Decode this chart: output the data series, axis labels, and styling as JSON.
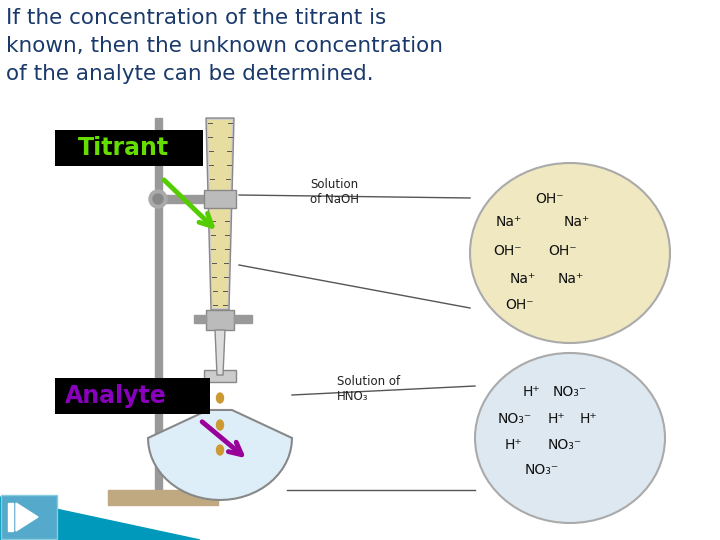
{
  "title_line1": "If the concentration of the titrant is",
  "title_line2": "known, then the unknown concentration",
  "title_line3": "of the analyte can be determined.",
  "title_color": "#1a3a6b",
  "title_fontsize": 15.5,
  "bg_color": "#ffffff",
  "titrant_label": "Titrant",
  "titrant_label_color": "#66dd00",
  "titrant_box_color": "#000000",
  "analyte_label": "Analyte",
  "analyte_label_color": "#8800bb",
  "analyte_box_color": "#000000",
  "naoh_circle_color": "#f0e8c0",
  "hno3_circle_color": "#dde8f0",
  "stand_color": "#aaaaaa",
  "burette_fill_color": "#e8dda0",
  "flask_fill_color": "#ddeef8",
  "base_color": "#c0a880",
  "arrow1_color": "#55cc00",
  "arrow2_color": "#990099",
  "nav_bg_color": "#0099bb",
  "solution_naoh_label": "Solution\nof NaOH",
  "solution_hno3_label": "Solution of\nHNO₃"
}
